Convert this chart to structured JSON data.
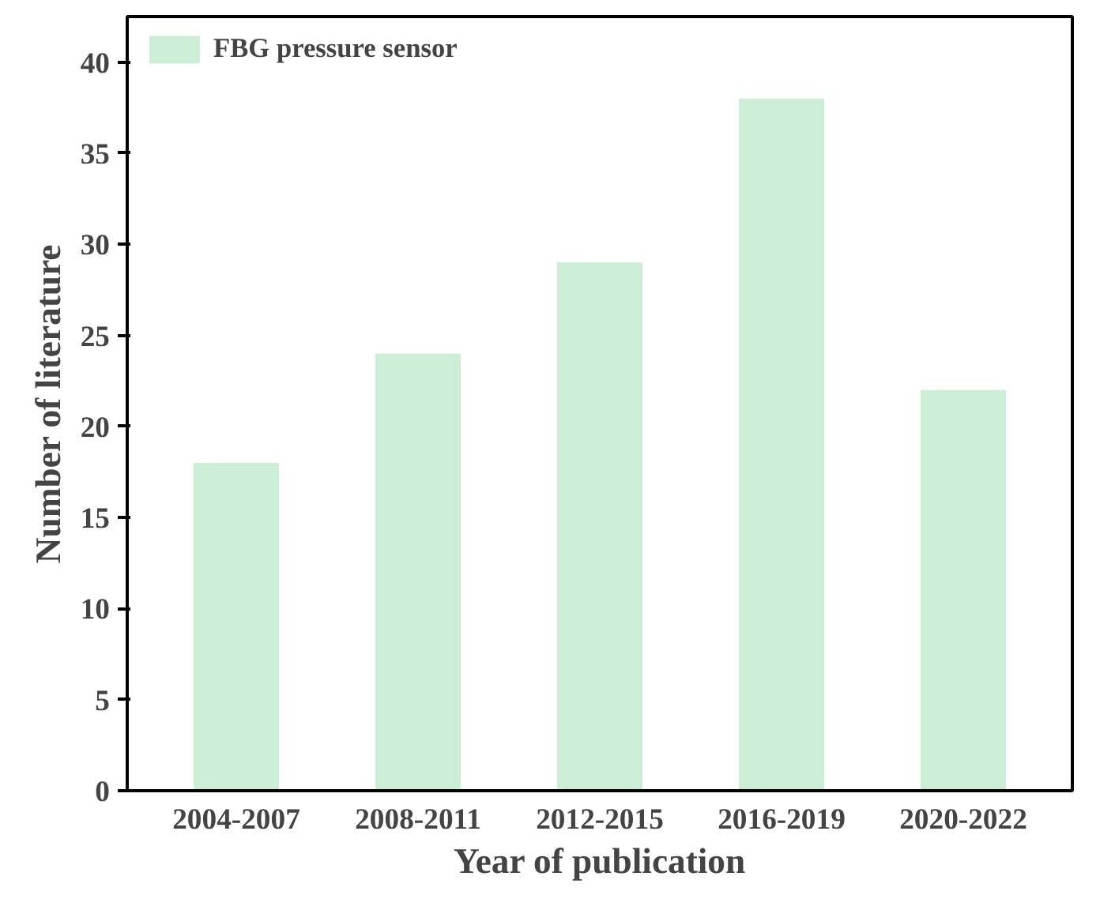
{
  "chart_data": {
    "type": "bar",
    "xlabel": "Year of publication",
    "ylabel": "Number of literature",
    "categories": [
      "2004-2007",
      "2008-2011",
      "2012-2015",
      "2016-2019",
      "2020-2022"
    ],
    "series": [
      {
        "name": "FBG pressure sensor",
        "color": "#cdeed6",
        "values": [
          18,
          24,
          29,
          38,
          22
        ]
      }
    ],
    "ylim": [
      0,
      42.5
    ],
    "yticks": [
      0,
      5,
      10,
      15,
      20,
      25,
      30,
      35,
      40
    ],
    "grid": false,
    "legend": "top left"
  }
}
